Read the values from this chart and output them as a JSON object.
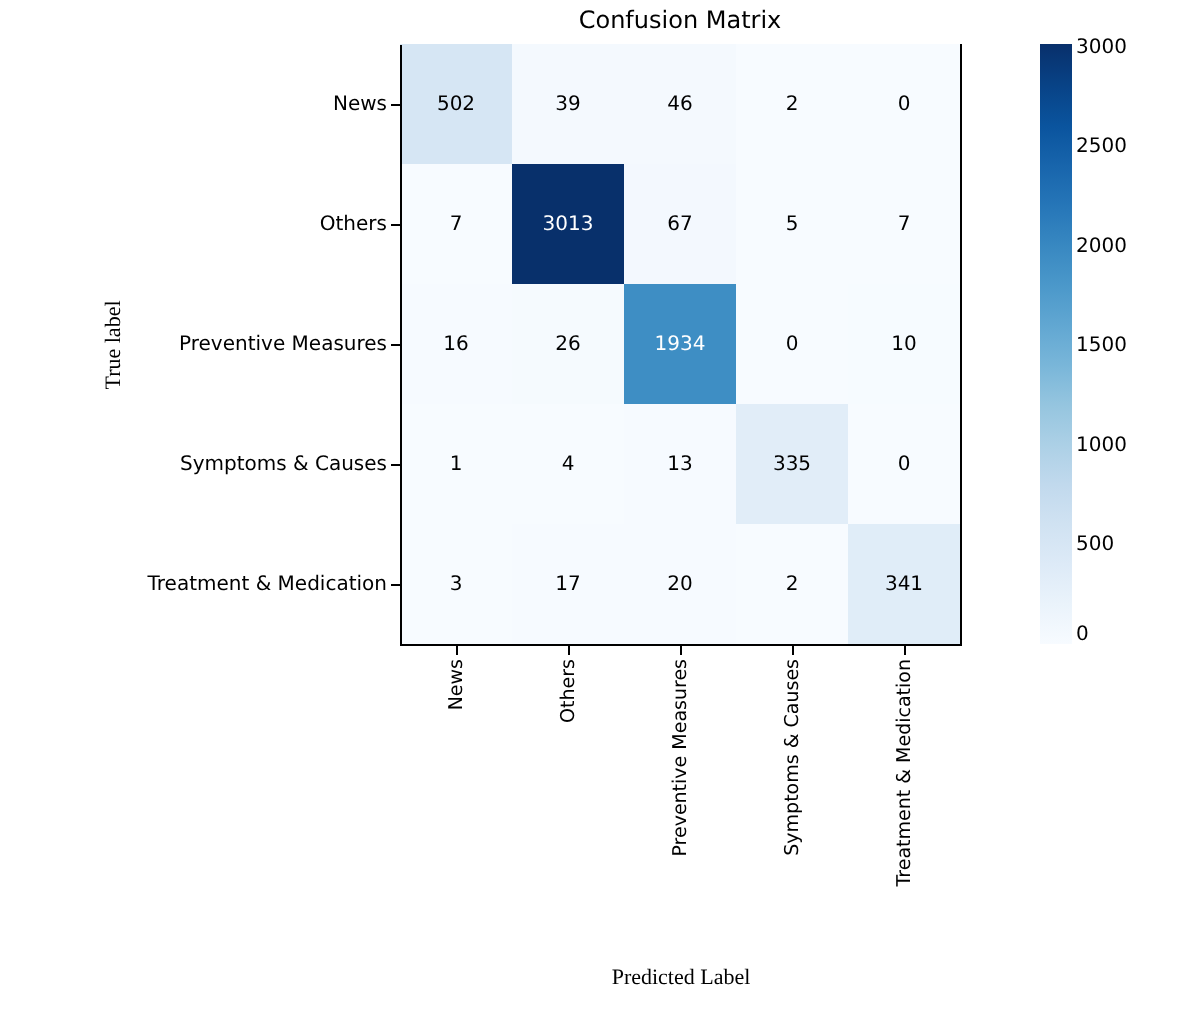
{
  "chart_data": {
    "type": "heatmap",
    "title": "Confusion Matrix",
    "xlabel": "Predicted Label",
    "ylabel": "True label",
    "categories": [
      "News",
      "Others",
      "Preventive Measures",
      "Symptoms & Causes",
      "Treatment & Medication"
    ],
    "y_categories": [
      "News",
      "Others",
      "Preventive Measures",
      "Symptoms & Causes",
      "Treatment & Medication"
    ],
    "cells": [
      [
        502,
        39,
        46,
        2,
        0
      ],
      [
        7,
        3013,
        67,
        5,
        7
      ],
      [
        16,
        26,
        1934,
        0,
        10
      ],
      [
        1,
        4,
        13,
        335,
        0
      ],
      [
        3,
        17,
        20,
        2,
        341
      ]
    ],
    "clim": [
      0,
      3013
    ],
    "cticks": [
      0,
      500,
      1000,
      1500,
      2000,
      2500,
      3000
    ],
    "data_labels": true,
    "grid": false
  }
}
